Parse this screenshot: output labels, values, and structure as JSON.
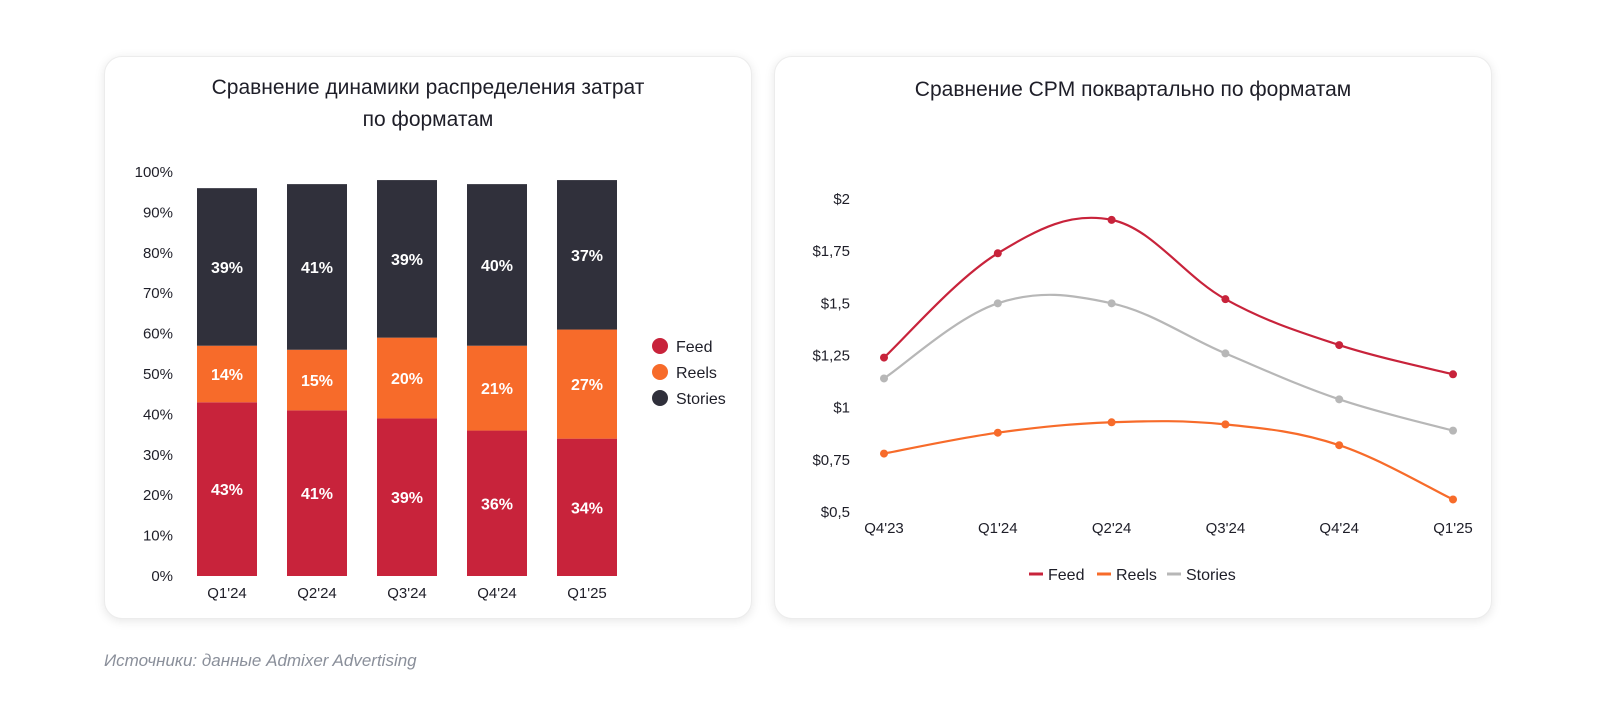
{
  "charts": [
    {
      "title_lines": [
        "Сравнение динамики распределения затрат",
        "по форматам"
      ]
    },
    {
      "title_lines": [
        "Сравнение CPM поквартально по форматам"
      ]
    }
  ],
  "source": "Источники: данные Admixer Advertising",
  "chart_data": [
    {
      "type": "bar",
      "stacked": true,
      "title": "Сравнение динамики распределения затрат по форматам",
      "categories": [
        "Q1'24",
        "Q2'24",
        "Q3'24",
        "Q4'24",
        "Q1'25"
      ],
      "series": [
        {
          "name": "Feed",
          "values": [
            43,
            41,
            39,
            36,
            34
          ],
          "labels": [
            "43%",
            "41%",
            "39%",
            "36%",
            "34%"
          ]
        },
        {
          "name": "Reels",
          "values": [
            14,
            15,
            20,
            21,
            27
          ],
          "labels": [
            "14%",
            "15%",
            "20%",
            "21%",
            "27%"
          ]
        },
        {
          "name": "Stories",
          "values": [
            39,
            41,
            39,
            40,
            37
          ],
          "labels": [
            "39%",
            "41%",
            "39%",
            "40%",
            "37%"
          ]
        }
      ],
      "y_ticks": [
        "0%",
        "10%",
        "20%",
        "30%",
        "40%",
        "50%",
        "60%",
        "70%",
        "80%",
        "90%",
        "100%"
      ],
      "ylim": [
        0,
        100
      ],
      "legend_position": "right",
      "colors": {
        "Feed": "#c8233b",
        "Reels": "#f76b2a",
        "Stories": "#30303b"
      },
      "legend": [
        "Feed",
        "Reels",
        "Stories"
      ]
    },
    {
      "type": "line",
      "smooth": true,
      "title": "Сравнение CPM поквартально по форматам",
      "categories": [
        "Q4'23",
        "Q1'24",
        "Q2'24",
        "Q3'24",
        "Q4'24",
        "Q1'25"
      ],
      "series": [
        {
          "name": "Feed",
          "values": [
            1.24,
            1.74,
            1.9,
            1.52,
            1.3,
            1.16
          ]
        },
        {
          "name": "Reels",
          "values": [
            0.78,
            0.88,
            0.93,
            0.92,
            0.82,
            0.56
          ]
        },
        {
          "name": "Stories",
          "values": [
            1.14,
            1.5,
            1.5,
            1.26,
            1.04,
            0.89
          ]
        }
      ],
      "y_ticks": [
        "$0,5",
        "$0,75",
        "$1",
        "$1,25",
        "$1,5",
        "$1,75",
        "$2"
      ],
      "ylim": [
        0.5,
        2
      ],
      "legend_position": "bottom",
      "colors": {
        "Feed": "#c8233b",
        "Reels": "#f76b2a",
        "Stories": "#b7b7b7"
      },
      "legend": [
        "Feed",
        "Reels",
        "Stories"
      ]
    }
  ]
}
